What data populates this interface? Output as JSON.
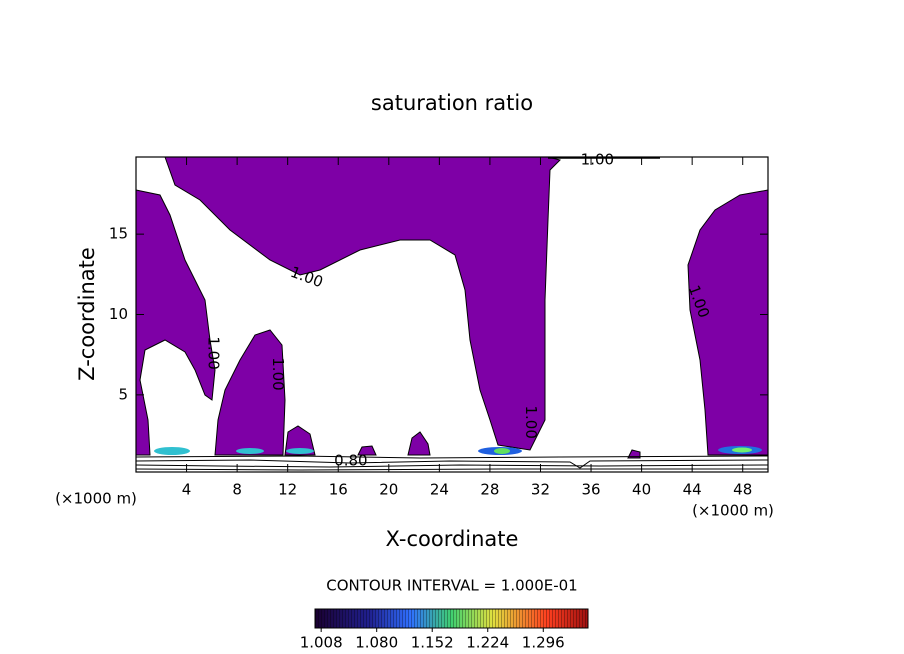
{
  "chart_data": {
    "type": "contour",
    "title": "saturation ratio",
    "x_label": "X-coordinate",
    "y_label": "Z-coordinate",
    "x_unit_left": "(×1000 m)",
    "x_unit_right": "(×1000 m)",
    "xlim": [
      0,
      50
    ],
    "ylim": [
      0.2,
      19.8
    ],
    "xticks": [
      4,
      8,
      12,
      16,
      20,
      24,
      28,
      32,
      36,
      40,
      44,
      48
    ],
    "yticks": [
      5,
      10,
      15
    ],
    "annotations": [
      {
        "text": "1.00",
        "x": 36.5,
        "y": 19.6
      },
      {
        "text": "1.00",
        "x": 13.5,
        "y": 12.3
      },
      {
        "text": "1.00",
        "x": 6.1,
        "y": 7.6
      },
      {
        "text": "1.00",
        "x": 11.2,
        "y": 6.3
      },
      {
        "text": "1.00",
        "x": 31.2,
        "y": 3.3
      },
      {
        "text": "1.00",
        "x": 44.5,
        "y": 10.8
      },
      {
        "text": "0.80",
        "x": 17,
        "y": 0.9
      }
    ],
    "contour_interval": "CONTOUR INTERVAL = 1.000E-01",
    "colorbar": {
      "clim": [
        1.0,
        1.354
      ],
      "ticks": [
        1.008,
        {
          "value": 1.08,
          "label": "1.080"
        },
        1.152,
        1.224,
        1.296
      ]
    }
  }
}
